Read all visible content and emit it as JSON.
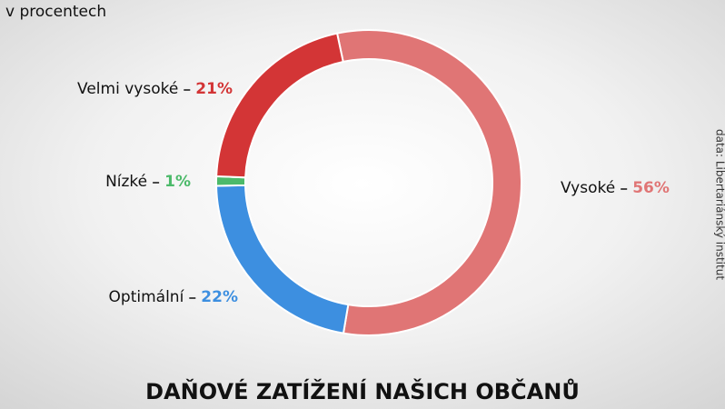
{
  "chart_data": {
    "type": "donut",
    "title": "DAŇOVÉ ZATÍŽENÍ NAŠICH OBČANŮ",
    "subtitle": "v procentech",
    "source": "data: Libertariánský institut",
    "categories": [
      "Vysoké",
      "Optimální",
      "Nízké",
      "Velmi vysoké"
    ],
    "values": [
      56,
      22,
      1,
      21
    ],
    "value_labels": [
      "56%",
      "22%",
      "1%",
      "21%"
    ],
    "colors": [
      "#e07575",
      "#3d8fe0",
      "#4cba6a",
      "#d33536"
    ]
  }
}
